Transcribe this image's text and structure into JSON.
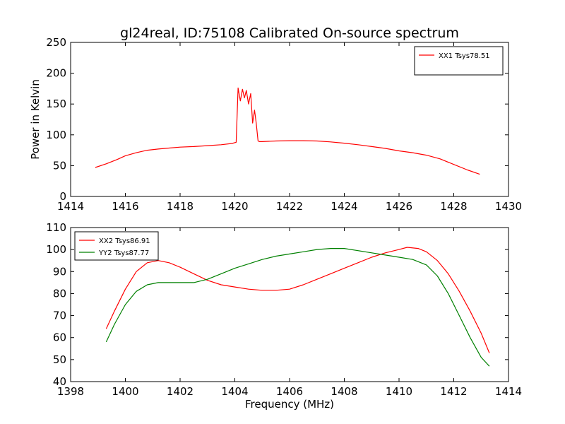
{
  "figure": {
    "title": "gl24real, ID:75108 Calibrated On-source spectrum"
  },
  "chart_data": [
    {
      "type": "line",
      "title": "gl24real, ID:75108 Calibrated On-source spectrum",
      "xlabel": "",
      "ylabel": "Power in Kelvin",
      "xlim": [
        1414,
        1430
      ],
      "ylim": [
        0,
        250
      ],
      "xticks": [
        1414,
        1416,
        1418,
        1420,
        1422,
        1424,
        1426,
        1428,
        1430
      ],
      "yticks": [
        0,
        50,
        100,
        150,
        200,
        250
      ],
      "grid": false,
      "legend_position": "top-right",
      "series": [
        {
          "name": "XX1 Tsys78.51",
          "color": "#ff0000",
          "x": [
            1414.9,
            1415.3,
            1415.7,
            1416.0,
            1416.4,
            1416.8,
            1417.2,
            1417.6,
            1418.0,
            1418.5,
            1419.0,
            1419.5,
            1419.9,
            1420.05,
            1420.12,
            1420.2,
            1420.28,
            1420.35,
            1420.42,
            1420.5,
            1420.58,
            1420.65,
            1420.72,
            1420.78,
            1420.85,
            1420.9,
            1421.0,
            1421.5,
            1422.0,
            1422.5,
            1423.0,
            1423.5,
            1424.0,
            1424.5,
            1425.0,
            1425.5,
            1426.0,
            1426.5,
            1427.0,
            1427.5,
            1428.0,
            1428.5,
            1428.95
          ],
          "y": [
            47,
            53,
            60,
            66,
            71,
            75,
            77,
            78.5,
            80,
            81,
            82.5,
            84,
            86,
            88,
            176,
            155,
            174,
            160,
            172,
            150,
            167,
            119,
            140,
            120,
            90,
            89,
            89,
            90,
            90.5,
            90.5,
            90,
            88.5,
            86.5,
            84,
            81,
            78,
            74,
            71,
            67,
            61,
            52,
            43,
            36
          ]
        }
      ]
    },
    {
      "type": "line",
      "title": "",
      "xlabel": "Frequency (MHz)",
      "ylabel": "",
      "xlim": [
        1398,
        1414
      ],
      "ylim": [
        40,
        110
      ],
      "xticks": [
        1398,
        1400,
        1402,
        1404,
        1406,
        1408,
        1410,
        1412,
        1414
      ],
      "yticks": [
        40,
        50,
        60,
        70,
        80,
        90,
        100,
        110
      ],
      "grid": false,
      "legend_position": "top-left",
      "series": [
        {
          "name": "XX2 Tsys86.91",
          "color": "#ff0000",
          "x": [
            1399.3,
            1399.6,
            1400.0,
            1400.4,
            1400.8,
            1401.2,
            1401.6,
            1402.0,
            1402.5,
            1403.0,
            1403.5,
            1404.0,
            1404.5,
            1405.0,
            1405.5,
            1406.0,
            1406.5,
            1407.0,
            1407.5,
            1408.0,
            1408.5,
            1409.0,
            1409.5,
            1410.0,
            1410.3,
            1410.7,
            1411.0,
            1411.4,
            1411.8,
            1412.2,
            1412.6,
            1413.0,
            1413.3
          ],
          "y": [
            64,
            72,
            82,
            90,
            94,
            95,
            94,
            92,
            89,
            86,
            84,
            83,
            82,
            81.5,
            81.5,
            82,
            84,
            86.5,
            89,
            91.5,
            94,
            96.5,
            98.5,
            100,
            101,
            100.5,
            99,
            95,
            89,
            81,
            72,
            62,
            53
          ]
        },
        {
          "name": "YY2 Tsys87.77",
          "color": "#008000",
          "x": [
            1399.3,
            1399.6,
            1400.0,
            1400.4,
            1400.8,
            1401.2,
            1401.6,
            1402.0,
            1402.5,
            1403.0,
            1403.5,
            1404.0,
            1404.5,
            1405.0,
            1405.5,
            1406.0,
            1406.5,
            1407.0,
            1407.5,
            1408.0,
            1408.5,
            1409.0,
            1409.5,
            1410.0,
            1410.5,
            1411.0,
            1411.4,
            1411.8,
            1412.2,
            1412.6,
            1413.0,
            1413.3
          ],
          "y": [
            58,
            66,
            75,
            81,
            84,
            85,
            85,
            85,
            85,
            86.5,
            89,
            91.5,
            93.5,
            95.5,
            97,
            98,
            99,
            100,
            100.5,
            100.5,
            99.5,
            98.5,
            97.5,
            96.5,
            95.5,
            93,
            88,
            80,
            70,
            60,
            51,
            47
          ]
        }
      ]
    }
  ]
}
